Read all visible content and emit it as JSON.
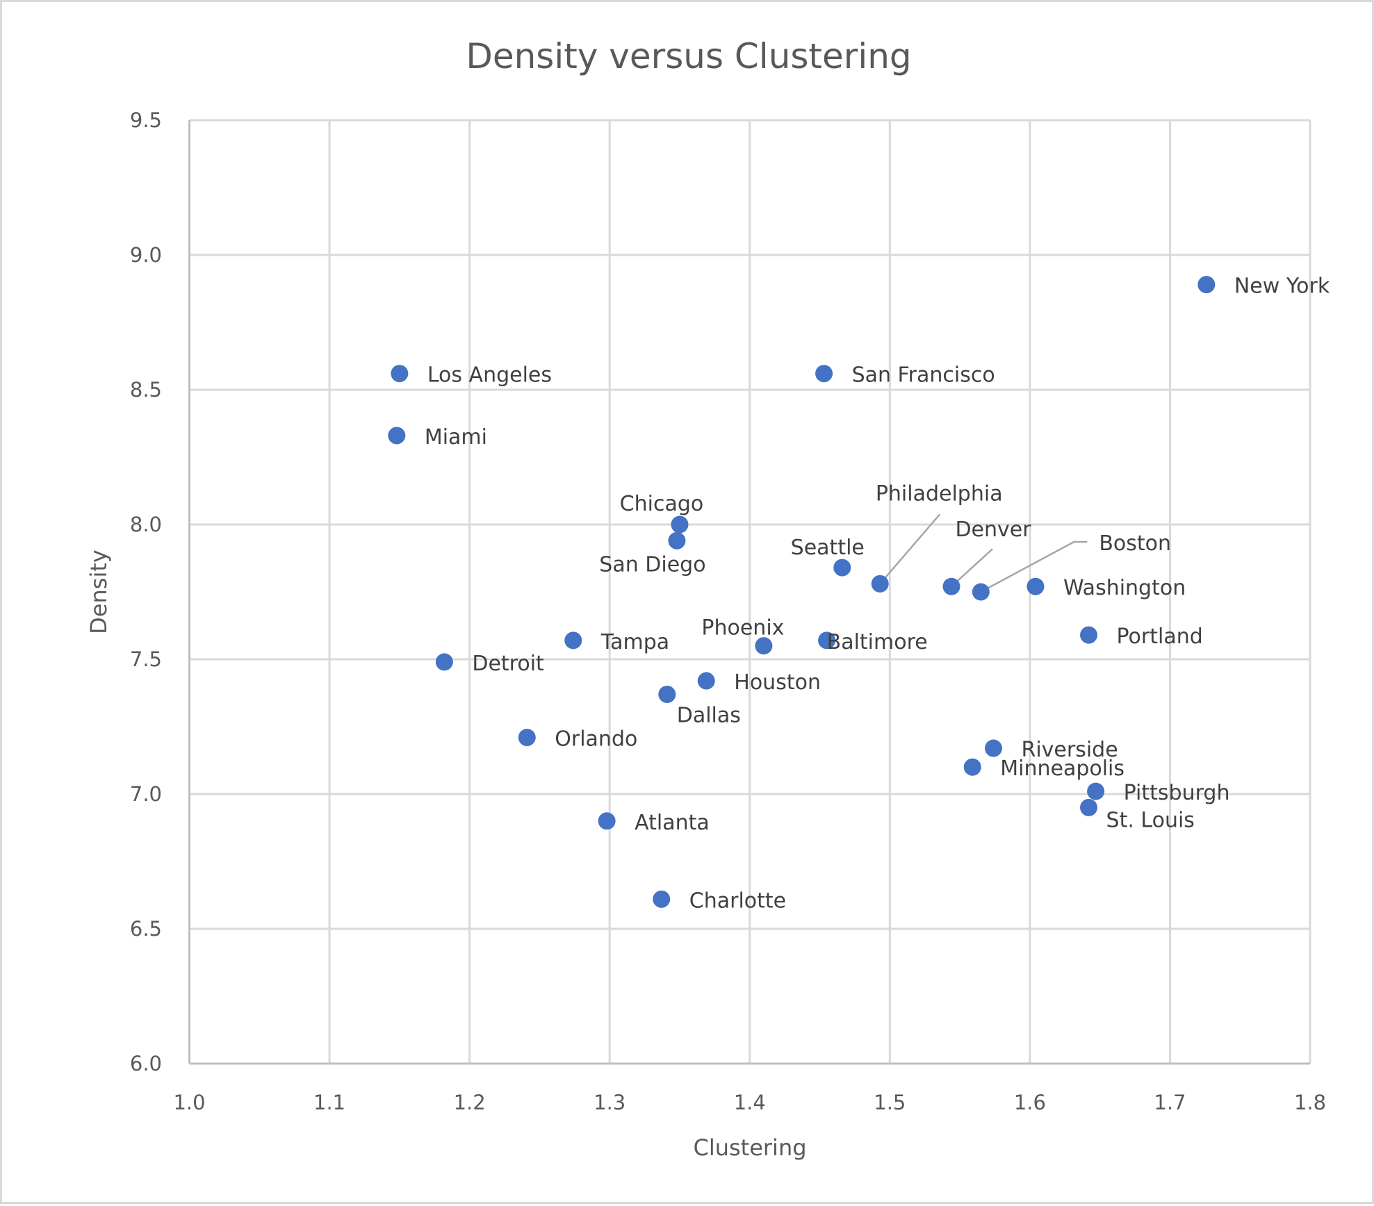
{
  "chart_data": {
    "type": "scatter",
    "title": "Density versus Clustering",
    "xlabel": "Clustering",
    "ylabel": "Density",
    "xlim": [
      1.0,
      1.8
    ],
    "ylim": [
      6.0,
      9.5
    ],
    "x_ticks": [
      "1.0",
      "1.1",
      "1.2",
      "1.3",
      "1.4",
      "1.5",
      "1.6",
      "1.7",
      "1.8"
    ],
    "y_ticks": [
      "6.0",
      "6.5",
      "7.0",
      "7.5",
      "8.0",
      "8.5",
      "9.0",
      "9.5"
    ],
    "grid": true,
    "legend": "none",
    "marker_color": "#4472c4",
    "points": [
      {
        "label": "New York",
        "x": 1.726,
        "y": 8.89
      },
      {
        "label": "Los Angeles",
        "x": 1.15,
        "y": 8.56
      },
      {
        "label": "San Francisco",
        "x": 1.453,
        "y": 8.56
      },
      {
        "label": "Miami",
        "x": 1.148,
        "y": 8.33
      },
      {
        "label": "Chicago",
        "x": 1.35,
        "y": 8.0
      },
      {
        "label": "San Diego",
        "x": 1.348,
        "y": 7.94
      },
      {
        "label": "Seattle",
        "x": 1.466,
        "y": 7.84
      },
      {
        "label": "Philadelphia",
        "x": 1.493,
        "y": 7.78
      },
      {
        "label": "Denver",
        "x": 1.544,
        "y": 7.77
      },
      {
        "label": "Boston",
        "x": 1.565,
        "y": 7.75
      },
      {
        "label": "Washington",
        "x": 1.604,
        "y": 7.77
      },
      {
        "label": "Portland",
        "x": 1.642,
        "y": 7.59
      },
      {
        "label": "Tampa",
        "x": 1.274,
        "y": 7.57
      },
      {
        "label": "Phoenix",
        "x": 1.41,
        "y": 7.55
      },
      {
        "label": "Baltimore",
        "x": 1.455,
        "y": 7.57
      },
      {
        "label": "Detroit",
        "x": 1.182,
        "y": 7.49
      },
      {
        "label": "Houston",
        "x": 1.369,
        "y": 7.42
      },
      {
        "label": "Dallas",
        "x": 1.341,
        "y": 7.37
      },
      {
        "label": "Orlando",
        "x": 1.241,
        "y": 7.21
      },
      {
        "label": "Riverside",
        "x": 1.574,
        "y": 7.17
      },
      {
        "label": "Minneapolis",
        "x": 1.559,
        "y": 7.1
      },
      {
        "label": "Pittsburgh",
        "x": 1.647,
        "y": 7.01
      },
      {
        "label": "St. Louis",
        "x": 1.642,
        "y": 6.95
      },
      {
        "label": "Atlanta",
        "x": 1.298,
        "y": 6.9
      },
      {
        "label": "Charlotte",
        "x": 1.337,
        "y": 6.61
      }
    ]
  }
}
